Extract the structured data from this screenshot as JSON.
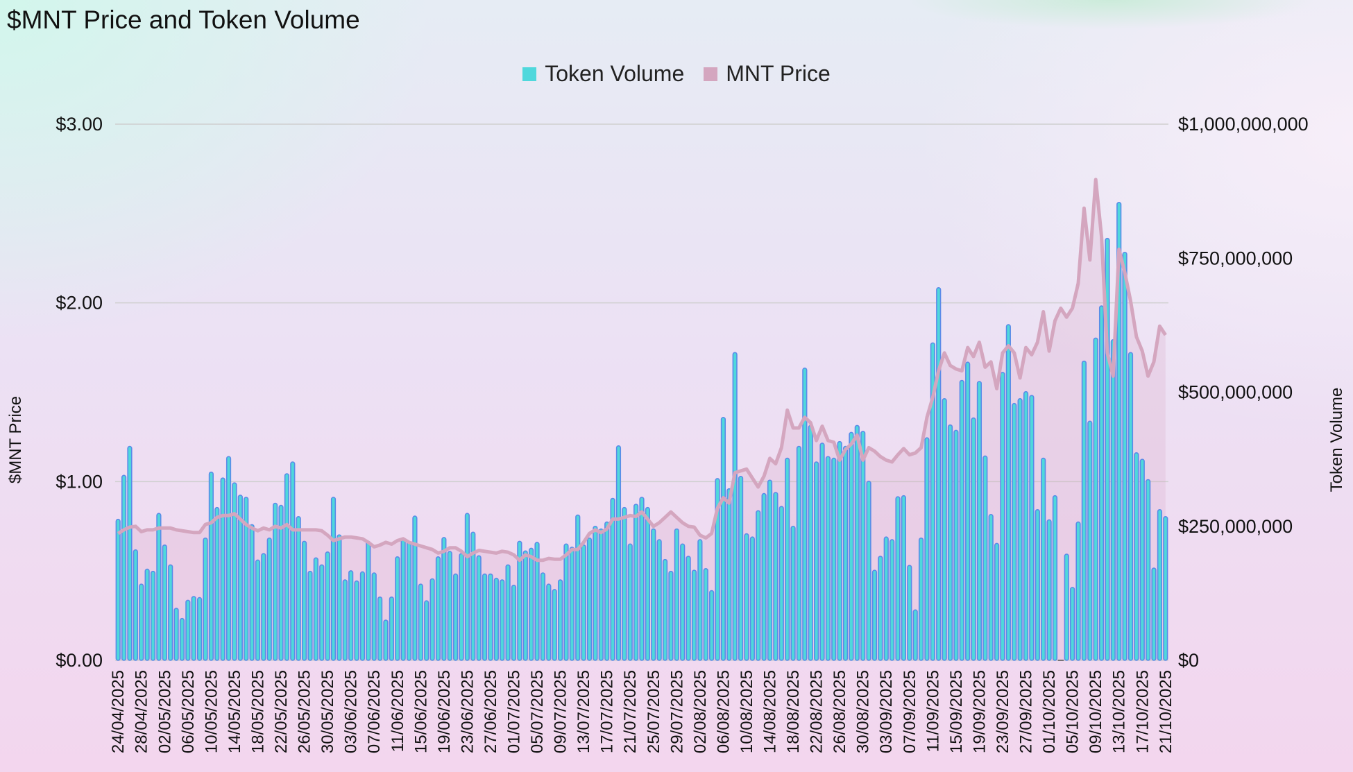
{
  "chart_data": {
    "type": "bar+line",
    "title": "$MNT Price and Token Volume",
    "legend": {
      "placement": "top-center",
      "entries": [
        "Token Volume",
        "MNT Price"
      ]
    },
    "x_interval": "daily",
    "x_tick_labels": [
      "24/04/2025",
      "28/04/2025",
      "02/05/2025",
      "06/05/2025",
      "10/05/2025",
      "14/05/2025",
      "18/05/2025",
      "22/05/2025",
      "26/05/2025",
      "30/05/2025",
      "03/06/2025",
      "07/06/2025",
      "11/06/2025",
      "15/06/2025",
      "19/06/2025",
      "23/06/2025",
      "27/06/2025",
      "01/07/2025",
      "05/07/2025",
      "09/07/2025",
      "13/07/2025",
      "17/07/2025",
      "21/07/2025",
      "25/07/2025",
      "29/07/2025",
      "02/08/2025",
      "06/08/2025",
      "10/08/2025",
      "14/08/2025",
      "18/08/2025",
      "22/08/2025",
      "26/08/2025",
      "30/08/2025",
      "03/09/2025",
      "07/09/2025",
      "11/09/2025",
      "15/09/2025",
      "19/09/2025",
      "23/09/2025",
      "27/09/2025",
      "01/10/2025",
      "05/10/2025",
      "09/10/2025",
      "13/10/2025",
      "17/10/2025",
      "21/10/2025"
    ],
    "left_axis": {
      "label": "$MNT Price",
      "range": [
        0,
        3
      ],
      "ticks": [
        "$0.00",
        "$1.00",
        "$2.00",
        "$3.00"
      ],
      "tick_values": [
        0,
        1,
        2,
        3
      ],
      "grid": true
    },
    "right_axis": {
      "label": "Token Volume",
      "range": [
        0,
        1000000000
      ],
      "ticks": [
        "$0",
        "$250,000,000",
        "$500,000,000",
        "$750,000,000",
        "$1,000,000,000"
      ],
      "tick_values": [
        0,
        250000000,
        500000000,
        750000000,
        1000000000
      ]
    },
    "series": [
      {
        "name": "Token Volume",
        "type": "bar",
        "axis": "right",
        "color": "#4fd8dc",
        "stroke": "#5a8ae8",
        "unit": "millions USD",
        "values": [
          263,
          345,
          399,
          206,
          142,
          170,
          166,
          274,
          215,
          178,
          97,
          78,
          112,
          119,
          117,
          228,
          351,
          285,
          340,
          380,
          331,
          308,
          304,
          253,
          187,
          199,
          228,
          293,
          289,
          348,
          370,
          268,
          222,
          166,
          191,
          178,
          202,
          304,
          234,
          150,
          167,
          148,
          165,
          222,
          163,
          118,
          75,
          118,
          193,
          227,
          222,
          269,
          142,
          111,
          152,
          193,
          229,
          203,
          161,
          199,
          274,
          239,
          195,
          161,
          161,
          153,
          150,
          178,
          140,
          222,
          204,
          209,
          220,
          163,
          142,
          132,
          150,
          217,
          211,
          271,
          215,
          228,
          250,
          245,
          258,
          302,
          400,
          285,
          217,
          291,
          304,
          285,
          245,
          225,
          188,
          166,
          245,
          217,
          194,
          168,
          225,
          171,
          130,
          339,
          453,
          320,
          574,
          343,
          236,
          230,
          279,
          311,
          336,
          313,
          287,
          377,
          250,
          399,
          545,
          438,
          370,
          405,
          380,
          377,
          408,
          399,
          425,
          438,
          427,
          334,
          168,
          194,
          230,
          225,
          305,
          307,
          177,
          94,
          228,
          415,
          592,
          695,
          488,
          439,
          429,
          522,
          556,
          452,
          520,
          381,
          272,
          218,
          537,
          626,
          479,
          488,
          501,
          494,
          281,
          377,
          262,
          307,
          0,
          198,
          136,
          258,
          558,
          446,
          601,
          661,
          787,
          598,
          854,
          761,
          574,
          387,
          375,
          337,
          172,
          281,
          268
        ]
      },
      {
        "name": "MNT Price",
        "type": "line",
        "axis": "left",
        "color": "#d4a6bf",
        "unit": "USD",
        "values": [
          0.71,
          0.73,
          0.745,
          0.75,
          0.72,
          0.73,
          0.73,
          0.74,
          0.74,
          0.74,
          0.73,
          0.725,
          0.72,
          0.715,
          0.715,
          0.76,
          0.77,
          0.8,
          0.81,
          0.81,
          0.82,
          0.79,
          0.76,
          0.74,
          0.725,
          0.74,
          0.73,
          0.75,
          0.74,
          0.76,
          0.73,
          0.73,
          0.73,
          0.73,
          0.73,
          0.725,
          0.7,
          0.67,
          0.68,
          0.69,
          0.69,
          0.685,
          0.68,
          0.66,
          0.635,
          0.645,
          0.66,
          0.65,
          0.67,
          0.68,
          0.66,
          0.65,
          0.64,
          0.63,
          0.62,
          0.6,
          0.61,
          0.63,
          0.63,
          0.61,
          0.58,
          0.6,
          0.615,
          0.61,
          0.605,
          0.6,
          0.61,
          0.605,
          0.59,
          0.56,
          0.59,
          0.58,
          0.56,
          0.56,
          0.57,
          0.566,
          0.566,
          0.59,
          0.62,
          0.62,
          0.66,
          0.71,
          0.73,
          0.715,
          0.735,
          0.79,
          0.79,
          0.8,
          0.81,
          0.805,
          0.83,
          0.79,
          0.75,
          0.77,
          0.8,
          0.83,
          0.8,
          0.77,
          0.75,
          0.745,
          0.7,
          0.685,
          0.71,
          0.85,
          0.91,
          0.88,
          1.05,
          1.06,
          1.07,
          1.02,
          0.97,
          1.03,
          1.13,
          1.1,
          1.19,
          1.4,
          1.3,
          1.3,
          1.36,
          1.33,
          1.23,
          1.31,
          1.23,
          1.22,
          1.12,
          1.18,
          1.21,
          1.26,
          1.12,
          1.19,
          1.17,
          1.14,
          1.12,
          1.11,
          1.15,
          1.185,
          1.15,
          1.16,
          1.19,
          1.36,
          1.47,
          1.62,
          1.72,
          1.65,
          1.63,
          1.62,
          1.75,
          1.7,
          1.78,
          1.64,
          1.67,
          1.52,
          1.72,
          1.76,
          1.72,
          1.58,
          1.75,
          1.71,
          1.78,
          1.95,
          1.73,
          1.9,
          1.97,
          1.92,
          1.97,
          2.11,
          2.53,
          2.24,
          2.69,
          2.37,
          1.72,
          1.59,
          2.3,
          2.17,
          2.01,
          1.81,
          1.73,
          1.59,
          1.67,
          1.87,
          1.82
        ]
      }
    ]
  }
}
